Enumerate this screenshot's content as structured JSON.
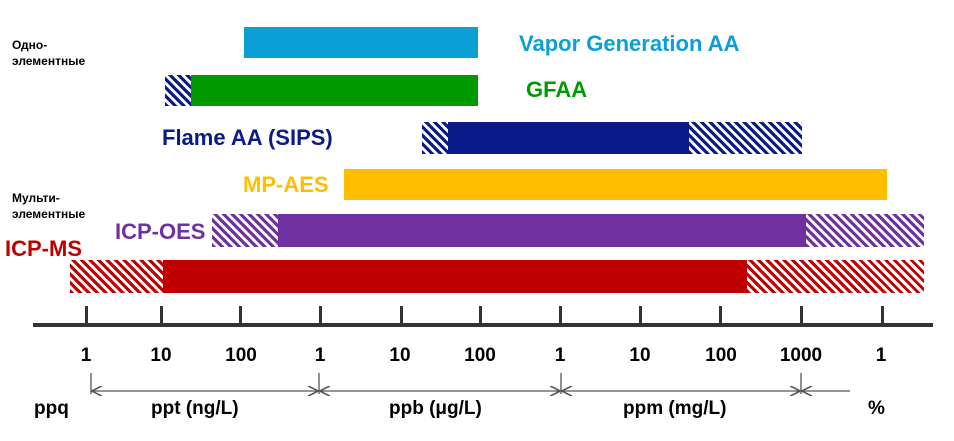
{
  "group_labels": {
    "single": "Одно-\nэлементные",
    "multi": "Мульти-\nэлементные"
  },
  "techniques": [
    {
      "name": "Vapor Generation AA",
      "color": "#0b9fd6"
    },
    {
      "name": "GFAA",
      "color": "#009a00"
    },
    {
      "name": "Flame AA (SIPS)",
      "color": "#0a1a8a"
    },
    {
      "name": "MP-AES",
      "color": "#ffbf00"
    },
    {
      "name": "ICP-OES",
      "color": "#7030a0"
    },
    {
      "name": "ICP-MS",
      "color": "#c00000"
    }
  ],
  "axis": {
    "ticks": [
      "1",
      "10",
      "100",
      "1",
      "10",
      "100",
      "1",
      "10",
      "100",
      "1000",
      "1"
    ],
    "units": [
      "ppq",
      "ppt (ng/L)",
      "ppb (μg/L)",
      "ppm (mg/L)",
      "%"
    ]
  }
}
